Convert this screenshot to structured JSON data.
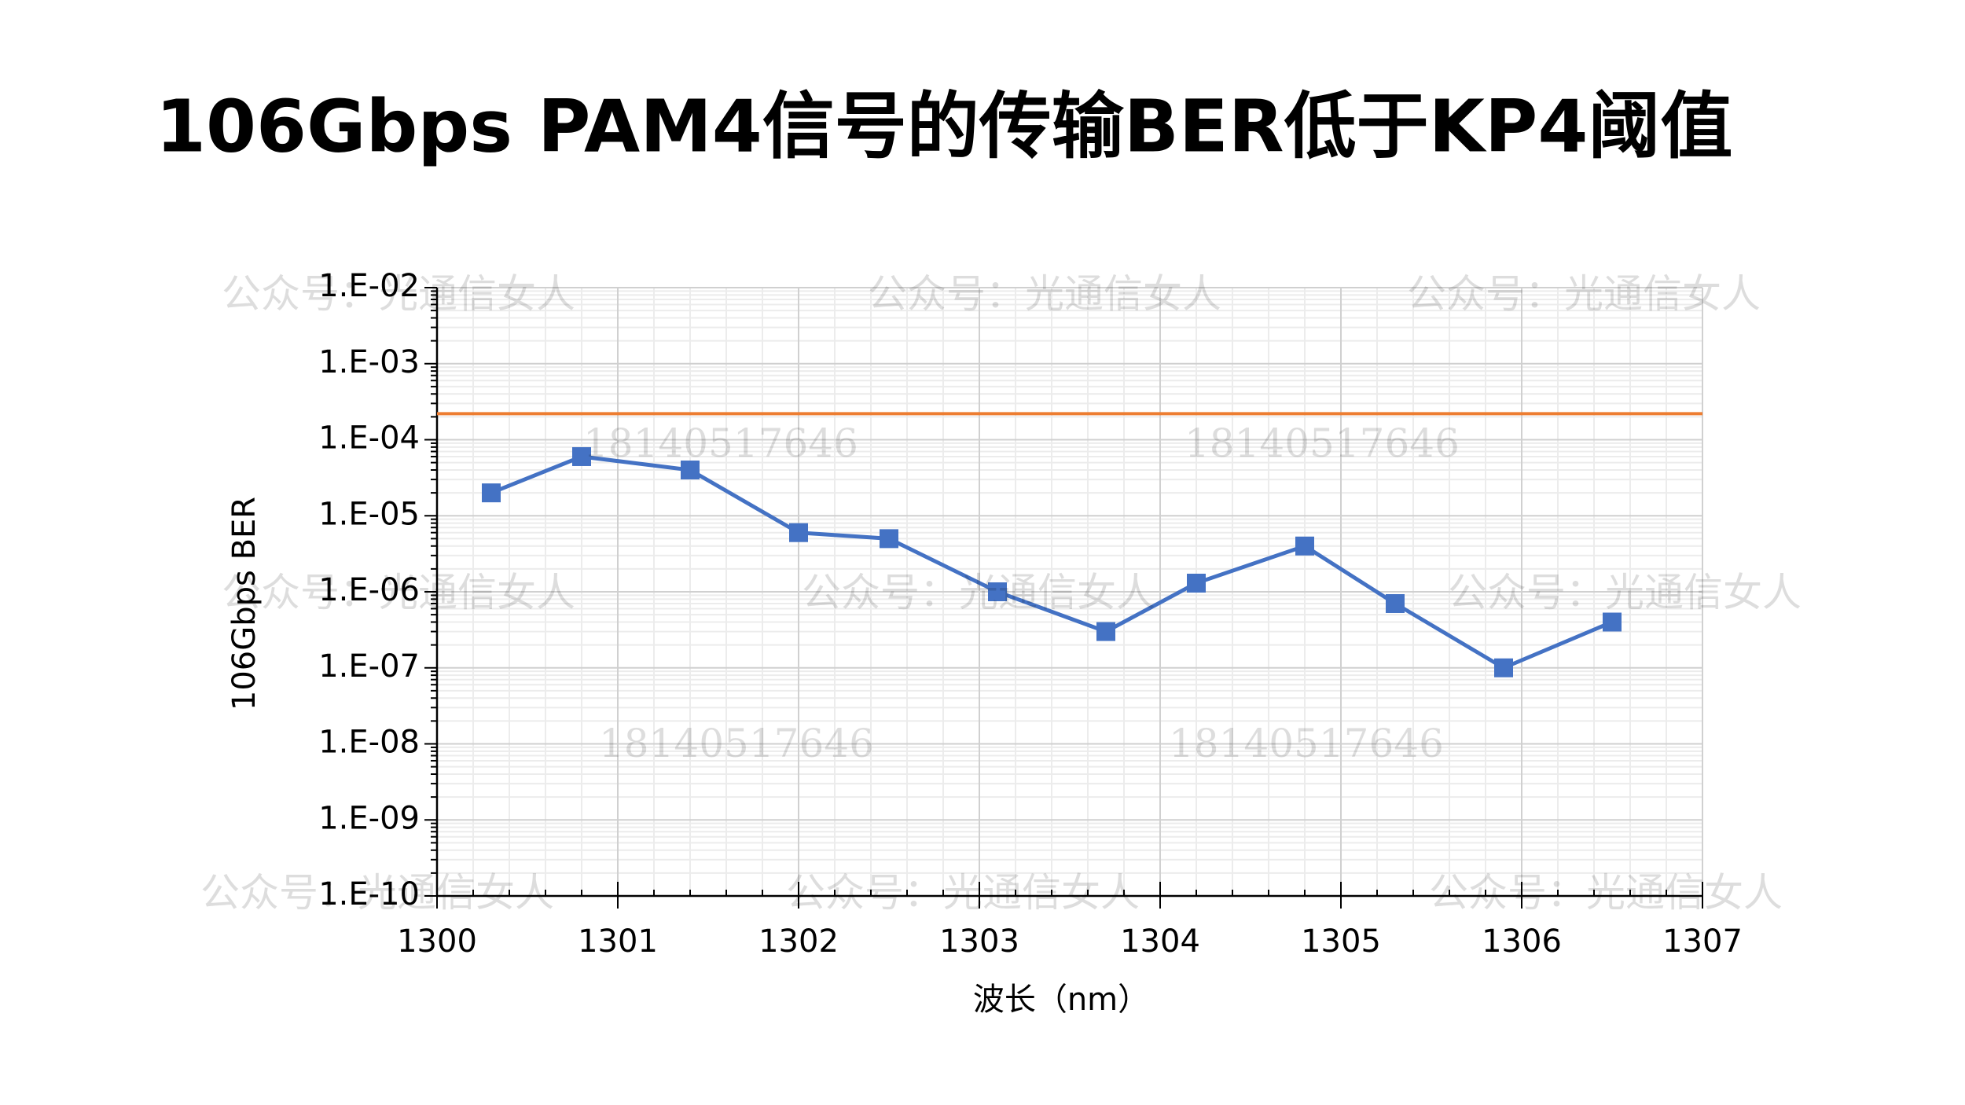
{
  "chart_data": {
    "type": "line",
    "title": "106Gbps PAM4信号的传输BER低于KP4阈值",
    "x_label": "波长（nm）",
    "y_label": "106Gbps BER",
    "x": [
      1300.3,
      1300.8,
      1301.4,
      1302.0,
      1302.5,
      1303.1,
      1303.7,
      1304.2,
      1304.8,
      1305.3,
      1305.9,
      1306.5
    ],
    "series": [
      {
        "color": "#4472c4",
        "values": [
          2e-05,
          6e-05,
          4e-05,
          6e-06,
          5e-06,
          1e-06,
          3e-07,
          1.3e-06,
          4e-06,
          7e-07,
          1e-07,
          4e-07
        ]
      }
    ],
    "threshold": {
      "value": 0.00022,
      "color": "#ed7d31"
    },
    "xlim": [
      1300,
      1307
    ],
    "xticks": [
      1300,
      1301,
      1302,
      1303,
      1304,
      1305,
      1306,
      1307
    ],
    "ylim": [
      1e-10,
      0.01
    ],
    "ylog": true,
    "yticks": [
      {
        "value": 0.01,
        "label": "1.E-02"
      },
      {
        "value": 0.001,
        "label": "1.E-03"
      },
      {
        "value": 0.0001,
        "label": "1.E-04"
      },
      {
        "value": 1e-05,
        "label": "1.E-05"
      },
      {
        "value": 1e-06,
        "label": "1.E-06"
      },
      {
        "value": 1e-07,
        "label": "1.E-07"
      },
      {
        "value": 1e-08,
        "label": "1.E-08"
      },
      {
        "value": 1e-09,
        "label": "1.E-09"
      },
      {
        "value": 1e-10,
        "label": "1.E-10"
      }
    ],
    "grid": true,
    "minor_grid": true,
    "watermarks": [
      "公众号：光通信女人",
      "18140517646"
    ]
  }
}
